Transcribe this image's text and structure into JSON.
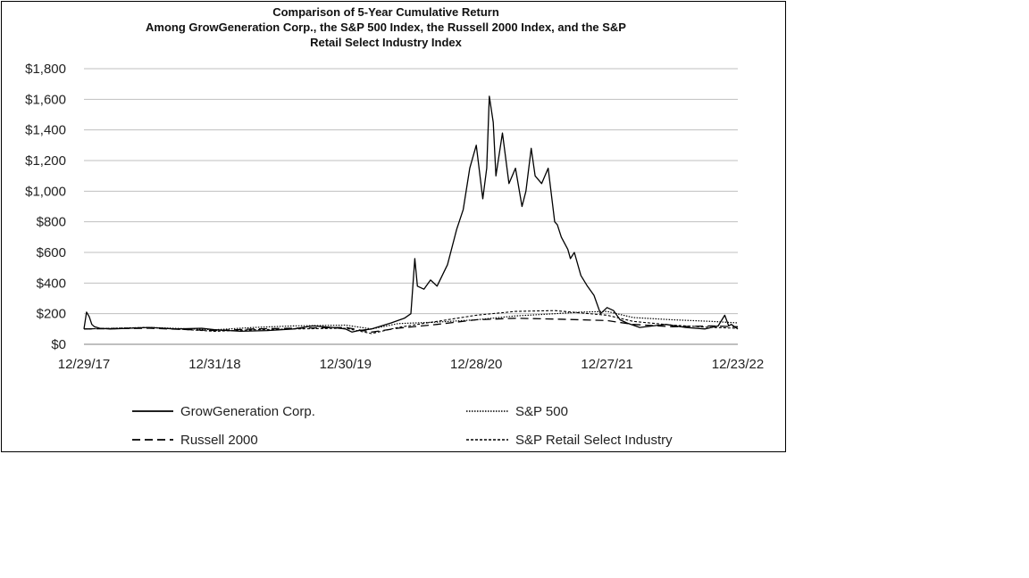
{
  "chart_data": {
    "type": "line",
    "title": [
      "Comparison of 5-Year Cumulative Return",
      "Among GrowGeneration Corp., the S&P 500 Index, the Russell 2000 Index, and the S&P",
      "Retail Select Industry Index"
    ],
    "xlabel": "",
    "ylabel": "",
    "ylim": [
      0,
      1800
    ],
    "ytick_values": [
      0,
      200,
      400,
      600,
      800,
      1000,
      1200,
      1400,
      1600,
      1800
    ],
    "ytick_labels": [
      "$0",
      "$200",
      "$400",
      "$600",
      "$800",
      "$1,000",
      "$1,200",
      "$1,400",
      "$1,600",
      "$1,800"
    ],
    "xlim": [
      0,
      5
    ],
    "xtick_values": [
      0,
      1,
      2,
      3,
      4,
      5
    ],
    "xtick_labels": [
      "12/29/17",
      "12/31/18",
      "12/30/19",
      "12/28/20",
      "12/27/21",
      "12/23/22"
    ],
    "grid": "horizontal",
    "legend_position": "bottom",
    "series": [
      {
        "name": "GrowGeneration Corp.",
        "style": "solid",
        "color": "#000000",
        "x": [
          0,
          0.02,
          0.04,
          0.06,
          0.08,
          0.12,
          0.2,
          0.35,
          0.5,
          0.7,
          0.9,
          1.0,
          1.2,
          1.4,
          1.6,
          1.75,
          1.9,
          2.0,
          2.05,
          2.1,
          2.2,
          2.35,
          2.45,
          2.5,
          2.53,
          2.55,
          2.6,
          2.65,
          2.7,
          2.78,
          2.85,
          2.9,
          2.95,
          3.0,
          3.05,
          3.08,
          3.1,
          3.13,
          3.15,
          3.2,
          3.25,
          3.3,
          3.35,
          3.38,
          3.42,
          3.45,
          3.5,
          3.55,
          3.6,
          3.62,
          3.65,
          3.7,
          3.72,
          3.75,
          3.8,
          3.85,
          3.9,
          3.95,
          4.0,
          4.05,
          4.1,
          4.15,
          4.25,
          4.35,
          4.45,
          4.6,
          4.75,
          4.85,
          4.9,
          4.93,
          4.95,
          5.0
        ],
        "values": [
          100,
          210,
          180,
          130,
          115,
          105,
          100,
          105,
          110,
          100,
          105,
          95,
          85,
          90,
          100,
          120,
          110,
          100,
          80,
          90,
          100,
          140,
          170,
          200,
          560,
          380,
          360,
          420,
          380,
          520,
          750,
          880,
          1150,
          1300,
          950,
          1150,
          1620,
          1450,
          1100,
          1380,
          1050,
          1150,
          900,
          1000,
          1280,
          1100,
          1050,
          1150,
          800,
          780,
          700,
          620,
          560,
          600,
          450,
          380,
          320,
          200,
          240,
          220,
          160,
          140,
          110,
          120,
          130,
          110,
          100,
          120,
          190,
          120,
          130,
          100
        ]
      },
      {
        "name": "S&P 500",
        "style": "dotted",
        "color": "#000000",
        "x": [
          0,
          0.5,
          1.0,
          1.3,
          1.6,
          2.0,
          2.2,
          2.4,
          2.7,
          3.0,
          3.3,
          3.6,
          3.8,
          4.0,
          4.2,
          4.5,
          4.8,
          5.0
        ],
        "values": [
          100,
          110,
          95,
          110,
          120,
          125,
          100,
          135,
          145,
          160,
          185,
          200,
          210,
          215,
          175,
          160,
          150,
          140
        ]
      },
      {
        "name": "Russell 2000",
        "style": "dashed",
        "color": "#000000",
        "x": [
          0,
          0.5,
          1.0,
          1.3,
          1.6,
          2.0,
          2.2,
          2.4,
          2.7,
          3.0,
          3.3,
          3.6,
          3.8,
          4.0,
          4.2,
          4.5,
          4.8,
          5.0
        ],
        "values": [
          100,
          105,
          90,
          100,
          105,
          110,
          80,
          105,
          130,
          160,
          170,
          165,
          160,
          155,
          130,
          115,
          120,
          115
        ]
      },
      {
        "name": "S&P Retail Select Industry",
        "style": "short-dashed",
        "color": "#000000",
        "x": [
          0,
          0.5,
          1.0,
          1.3,
          1.6,
          2.0,
          2.2,
          2.4,
          2.7,
          3.0,
          3.3,
          3.6,
          3.8,
          4.0,
          4.2,
          4.5,
          4.8,
          5.0
        ],
        "values": [
          100,
          110,
          85,
          95,
          100,
          105,
          70,
          110,
          150,
          190,
          215,
          220,
          205,
          190,
          150,
          125,
          110,
          105
        ]
      }
    ]
  }
}
